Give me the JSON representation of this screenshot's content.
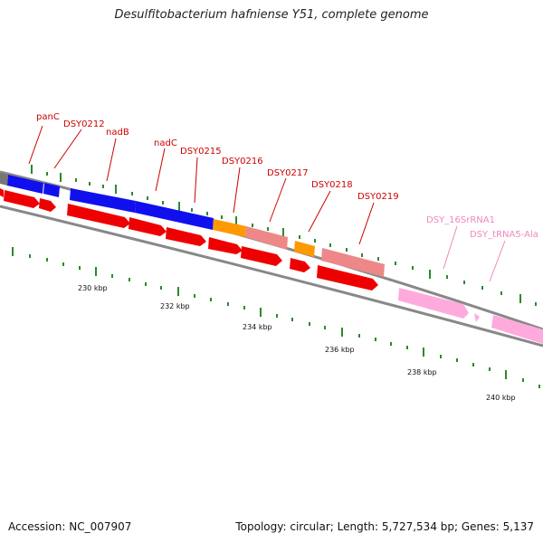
{
  "title": "Desulfitobacterium hafniense Y51, complete genome",
  "accession_text": "Accession: NC_007907",
  "summary_text": "Topology: circular; Length: 5,727,534 bp; Genes: 5,137",
  "colors": {
    "label": "#cc0000",
    "label_pink": "#ee88bb",
    "backbone": "#888888",
    "tick": "#2a8a2a",
    "blue": "#1010ee",
    "red": "#ee0000",
    "orange": "#ff9900",
    "salmon": "#ee8888",
    "pink": "#ffaadd",
    "grey": "#777777"
  },
  "gene_labels": [
    {
      "id": "panC",
      "text": "panC",
      "color": "red"
    },
    {
      "id": "DSY0212",
      "text": "DSY0212",
      "color": "red"
    },
    {
      "id": "nadB",
      "text": "nadB",
      "color": "red"
    },
    {
      "id": "nadC",
      "text": "nadC",
      "color": "red"
    },
    {
      "id": "DSY0215",
      "text": "DSY0215",
      "color": "red"
    },
    {
      "id": "DSY0216",
      "text": "DSY0216",
      "color": "red"
    },
    {
      "id": "DSY0217",
      "text": "DSY0217",
      "color": "red"
    },
    {
      "id": "DSY0218",
      "text": "DSY0218",
      "color": "red"
    },
    {
      "id": "DSY0219",
      "text": "DSY0219",
      "color": "red"
    },
    {
      "id": "DSY_16SrRNA1",
      "text": "DSY_16SrRNA1",
      "color": "pink"
    },
    {
      "id": "DSY_tRNA5-Ala",
      "text": "DSY_tRNA5-Ala",
      "color": "pink"
    }
  ],
  "scale_labels": [
    "230 kbp",
    "232 kbp",
    "234 kbp",
    "236 kbp",
    "238 kbp",
    "240 kbp"
  ]
}
